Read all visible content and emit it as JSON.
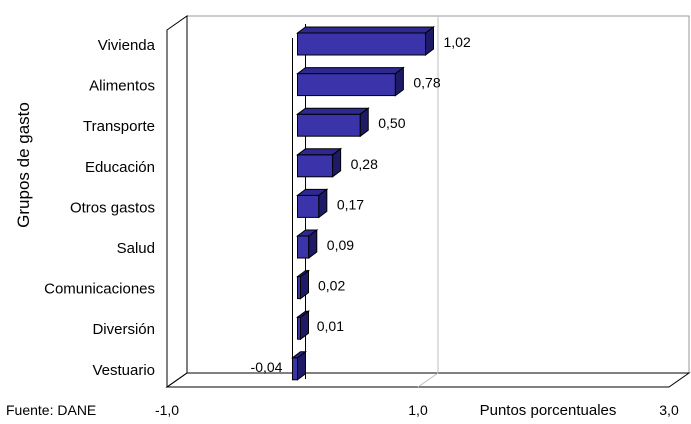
{
  "source_note": "Fuente: DANE",
  "chart_data": {
    "type": "bar",
    "orientation": "horizontal",
    "style": "3d",
    "categories": [
      "Vivienda",
      "Alimentos",
      "Transporte",
      "Educación",
      "Otros gastos",
      "Salud",
      "Comunicaciones",
      "Diversión",
      "Vestuario"
    ],
    "values": [
      1.02,
      0.78,
      0.5,
      0.28,
      0.17,
      0.09,
      0.02,
      0.01,
      -0.04
    ],
    "data_labels": [
      "1,02",
      "0,78",
      "0,50",
      "0,28",
      "0,17",
      "0,09",
      "0,02",
      "0,01",
      "-0,04"
    ],
    "xlim": [
      -1.0,
      3.0
    ],
    "xticks": [
      -1.0,
      1.0,
      3.0
    ],
    "xtick_labels": [
      "-1,0",
      "1,0",
      "3,0"
    ],
    "xlabel": "Puntos porcentuales",
    "ylabel": "Grupos de gasto",
    "grid": true,
    "legend": "none",
    "colors": {
      "bar_face": "#3A33AA",
      "bar_top": "#2E2890",
      "bar_side": "#1E1A66",
      "bar_stroke": "#000000",
      "wall_stroke": "#999999"
    }
  }
}
